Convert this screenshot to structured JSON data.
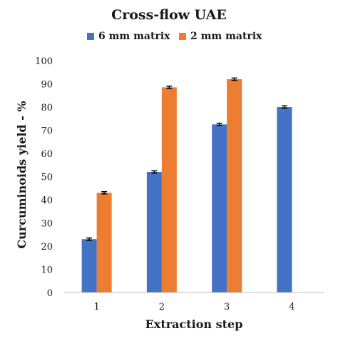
{
  "chart_data": {
    "type": "bar",
    "title": "Cross-flow UAE",
    "xlabel": "Extraction step",
    "ylabel": "Curcuminoids yield - %",
    "categories": [
      "1",
      "2",
      "3",
      "4"
    ],
    "ylim": [
      0,
      100
    ],
    "yticks": [
      0,
      10,
      20,
      30,
      40,
      50,
      60,
      70,
      80,
      90,
      100
    ],
    "grid": false,
    "legend_position": "top-center",
    "error_bars": true,
    "series": [
      {
        "name": "6 mm matrix",
        "color": "#4472C4",
        "values": [
          23,
          52,
          72.5,
          80
        ],
        "errors": [
          0.5,
          0.5,
          0.5,
          0.5
        ]
      },
      {
        "name": "2 mm matrix",
        "color": "#ED7D31",
        "values": [
          43,
          88.5,
          92,
          null
        ],
        "errors": [
          0.5,
          0.5,
          0.5,
          null
        ]
      }
    ]
  }
}
